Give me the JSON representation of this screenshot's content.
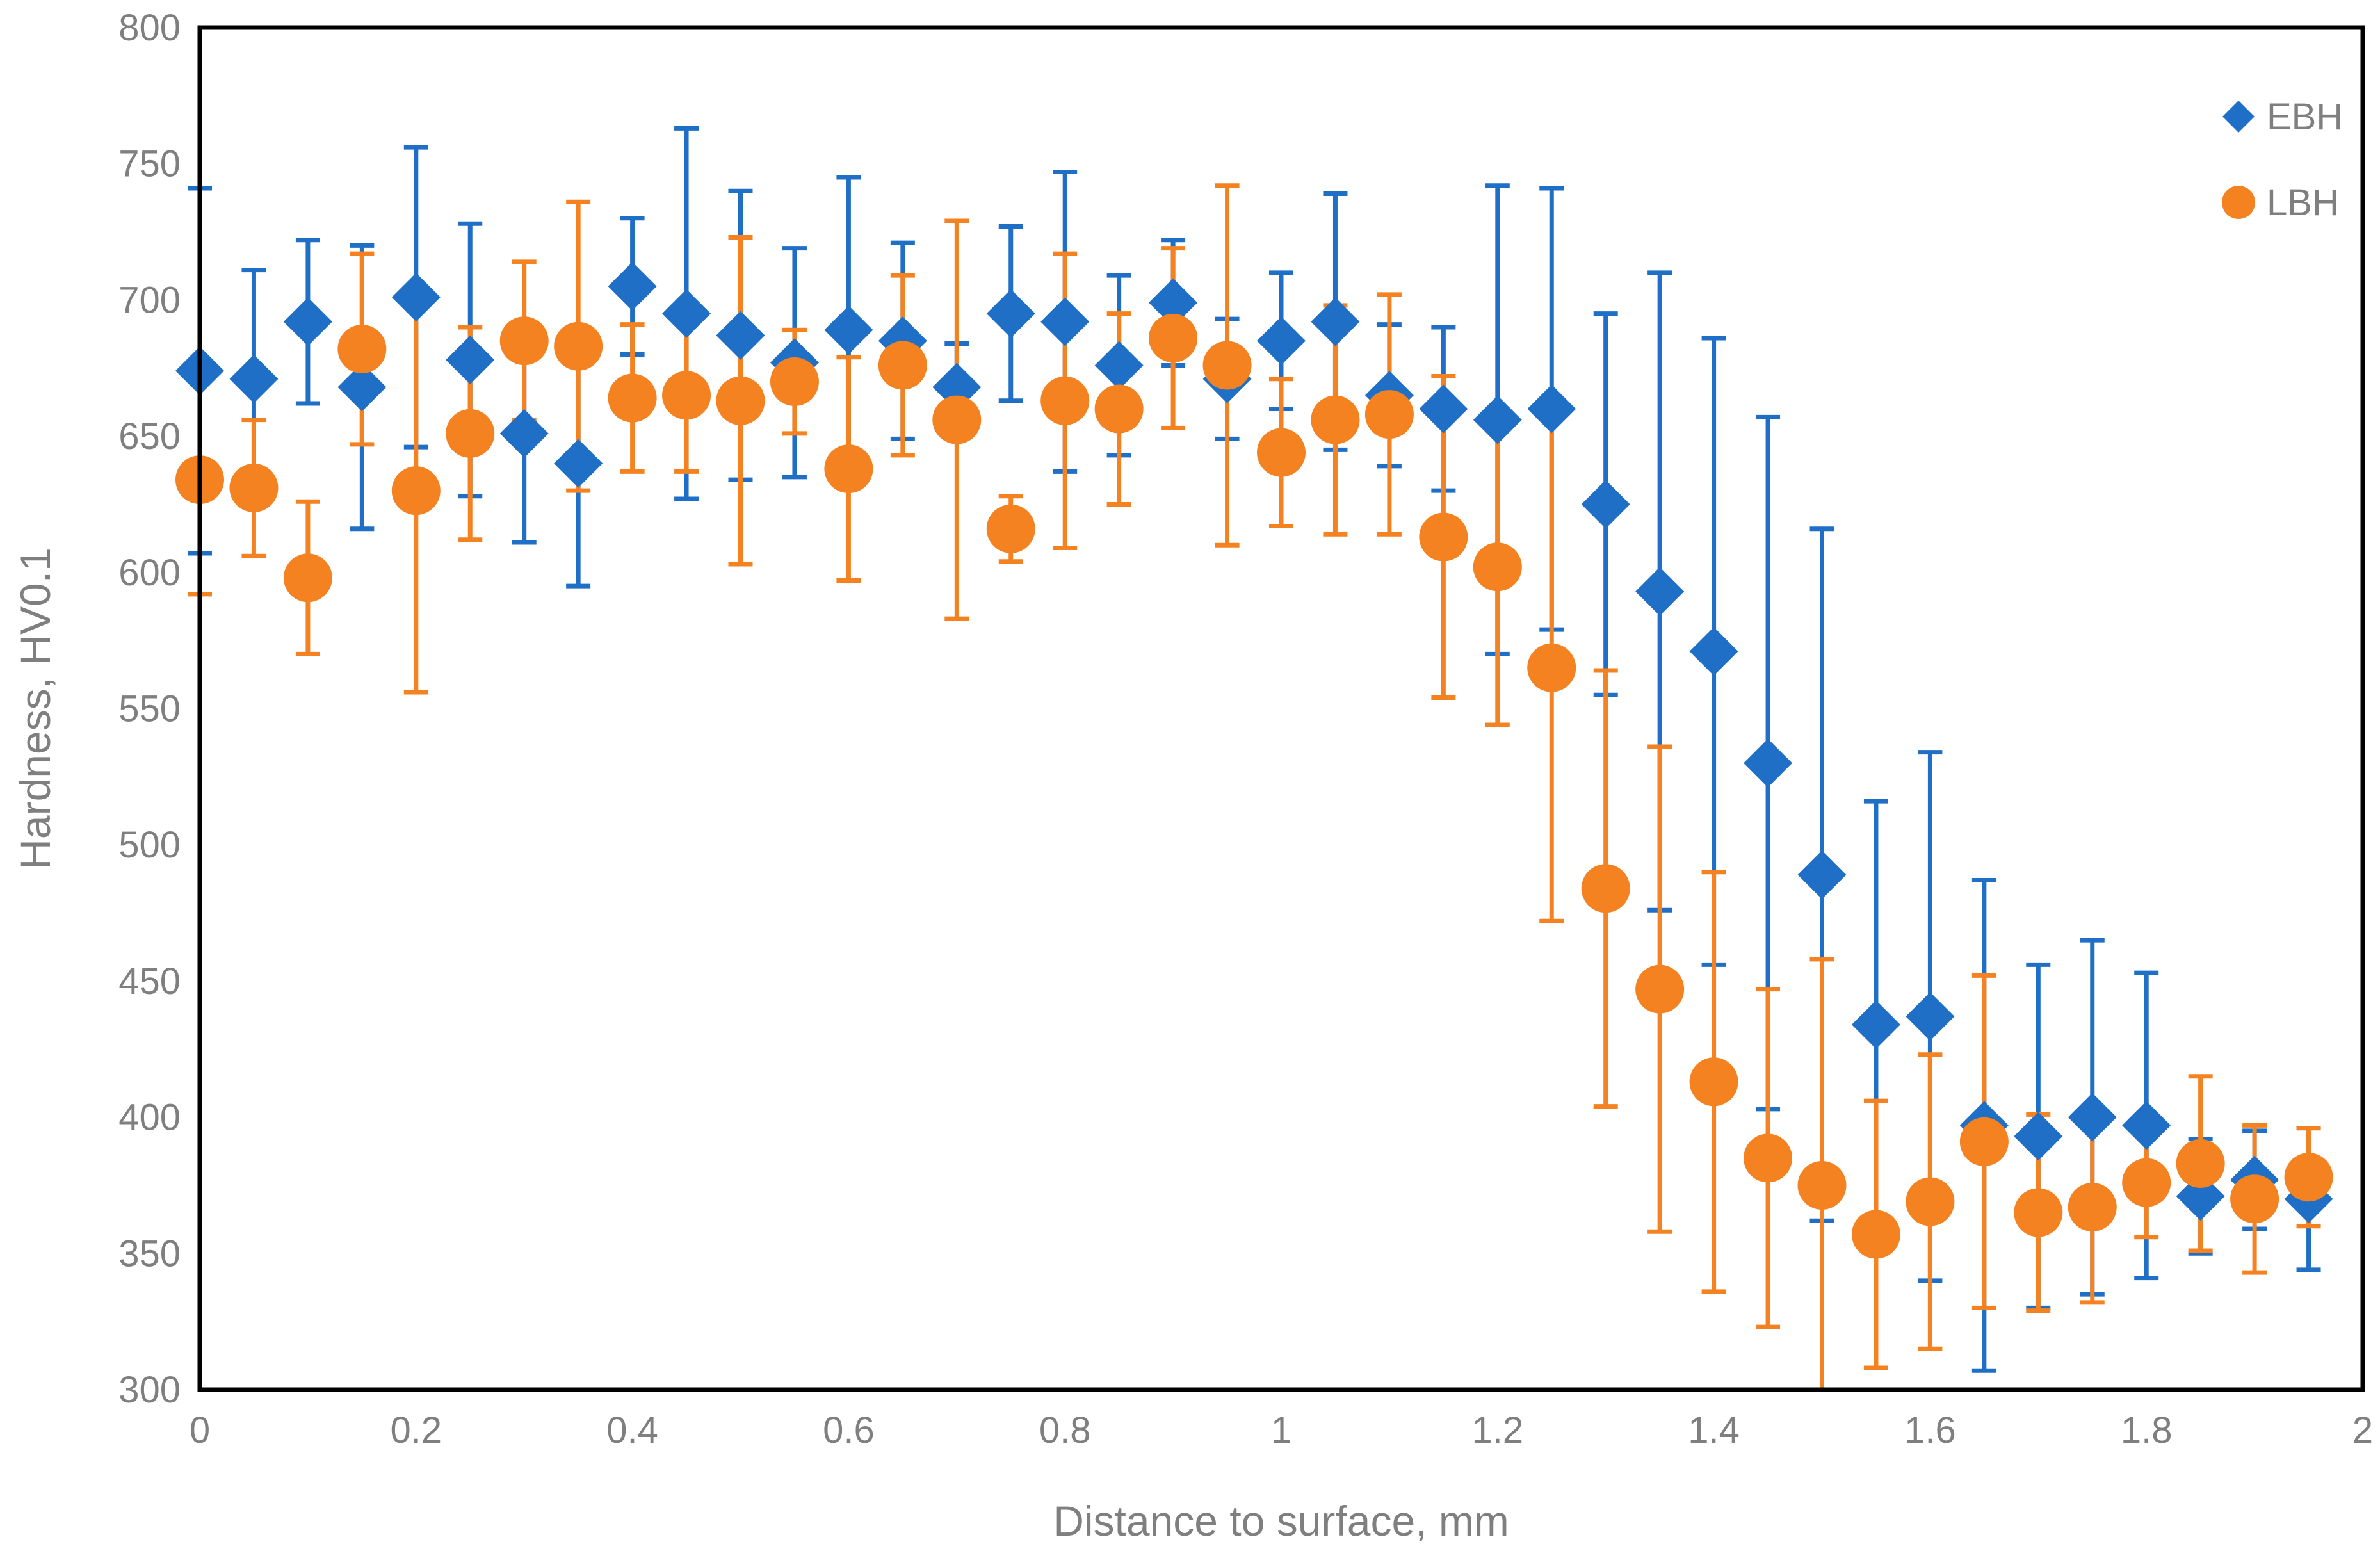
{
  "chart_data": {
    "type": "scatter",
    "title": "",
    "xlabel": "Distance to surface, mm",
    "ylabel": "Hardness, HV0.1",
    "xlim": [
      0,
      2
    ],
    "ylim": [
      300,
      800
    ],
    "x_ticks": [
      "0",
      "0.2",
      "0.4",
      "0.6",
      "0.8",
      "1",
      "1.2",
      "1.4",
      "1.6",
      "1.8",
      "2"
    ],
    "y_ticks": [
      "300",
      "350",
      "400",
      "450",
      "500",
      "550",
      "600",
      "650",
      "700",
      "750",
      "800"
    ],
    "legend_position": "top-right",
    "series": [
      {
        "name": "EBH",
        "color": "#1f6fc6",
        "marker": "diamond",
        "x": [
          0,
          0.05,
          0.1,
          0.15,
          0.2,
          0.25,
          0.3,
          0.35,
          0.4,
          0.45,
          0.5,
          0.55,
          0.6,
          0.65,
          0.7,
          0.75,
          0.8,
          0.85,
          0.9,
          0.95,
          1.0,
          1.05,
          1.1,
          1.15,
          1.2,
          1.25,
          1.3,
          1.35,
          1.4,
          1.45,
          1.5,
          1.55,
          1.6,
          1.65,
          1.7,
          1.75,
          1.8,
          1.85,
          1.9,
          1.95
        ],
        "y": [
          674,
          671,
          692,
          668,
          701,
          678,
          651,
          640,
          705,
          695,
          687,
          677,
          689,
          685,
          668,
          695,
          692,
          676,
          699,
          671,
          685,
          692,
          665,
          660,
          656,
          660,
          625,
          593,
          571,
          530,
          489,
          434,
          437,
          397,
          393,
          400,
          397,
          371,
          377,
          370
        ],
        "err": [
          67,
          40,
          30,
          52,
          55,
          50,
          40,
          45,
          25,
          68,
          53,
          42,
          56,
          36,
          16,
          32,
          55,
          33,
          23,
          22,
          25,
          47,
          26,
          30,
          86,
          81,
          70,
          117,
          115,
          127,
          127,
          82,
          97,
          90,
          63,
          65,
          56,
          21,
          18,
          26
        ]
      },
      {
        "name": "LBH",
        "color": "#f58220",
        "marker": "circle",
        "x": [
          0,
          0.05,
          0.1,
          0.15,
          0.2,
          0.25,
          0.3,
          0.35,
          0.4,
          0.45,
          0.5,
          0.55,
          0.6,
          0.65,
          0.7,
          0.75,
          0.8,
          0.85,
          0.9,
          0.95,
          1.0,
          1.05,
          1.1,
          1.15,
          1.2,
          1.25,
          1.3,
          1.35,
          1.4,
          1.45,
          1.5,
          1.55,
          1.6,
          1.65,
          1.7,
          1.75,
          1.8,
          1.85,
          1.9,
          1.95
        ],
        "y": [
          634,
          631,
          598,
          682,
          630,
          651,
          685,
          683,
          664,
          665,
          663,
          670,
          638,
          676,
          656,
          616,
          663,
          660,
          686,
          676,
          644,
          656,
          658,
          613,
          602,
          565,
          484,
          447,
          413,
          385,
          375,
          357,
          369,
          391,
          365,
          367,
          376,
          383,
          370,
          378
        ],
        "err": [
          42,
          25,
          28,
          35,
          74,
          39,
          29,
          53,
          27,
          28,
          60,
          19,
          41,
          33,
          73,
          12,
          54,
          35,
          33,
          66,
          27,
          42,
          44,
          59,
          58,
          93,
          80,
          89,
          77,
          62,
          83,
          49,
          54,
          61,
          36,
          35,
          20,
          32,
          27,
          18
        ]
      }
    ]
  }
}
